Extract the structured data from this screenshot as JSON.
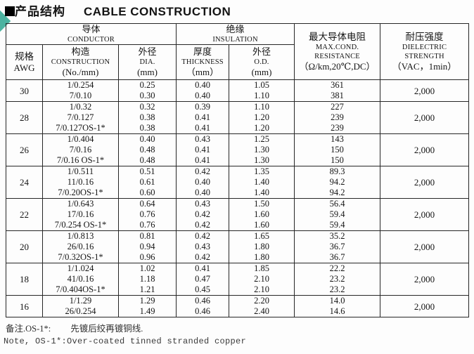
{
  "title": {
    "bullet": "■",
    "zh": "产品结构",
    "en": "CABLE CONSTRUCTION"
  },
  "colors": {
    "accent_teal": "#4cb3a0",
    "border": "#262626",
    "text": "#141414",
    "background": "#ffffff"
  },
  "table": {
    "header": {
      "conductor_group": {
        "zh": "导体",
        "en": "CONDUCTOR"
      },
      "insulation_group": {
        "zh": "绝缘",
        "en": "INSULATION"
      },
      "awg": {
        "zh": "规格",
        "en": "AWG"
      },
      "construction": {
        "zh": "构造",
        "en": "CONSTRUCTION",
        "unit": "(No./mm)"
      },
      "dia": {
        "zh": "外径",
        "en": "DIA.",
        "unit": "(mm)"
      },
      "thickness": {
        "zh": "厚度",
        "en": "THICKNESS",
        "unit": "（mm）"
      },
      "od": {
        "zh": "外径",
        "en": "O.D.",
        "unit": "(mm)"
      },
      "resistance": {
        "zh": "最大导体电阻",
        "en1": "MAX.COND.",
        "en2": "RESISTANCE",
        "unit": "（Ω/km,20℃,DC）"
      },
      "dielectric": {
        "zh": "耐压强度",
        "en1": "DIELECTRIC",
        "en2": "STRENGTH",
        "unit": "（VAC，1min）"
      }
    },
    "groups": [
      {
        "awg": "30",
        "dielectric": "2,000",
        "rows": [
          {
            "construction": "1/0.254",
            "dia": "0.25",
            "thickness": "0.40",
            "od": "1.05",
            "resistance": "361"
          },
          {
            "construction": "7/0.10",
            "dia": "0.30",
            "thickness": "0.40",
            "od": "1.10",
            "resistance": "381"
          }
        ]
      },
      {
        "awg": "28",
        "dielectric": "2,000",
        "rows": [
          {
            "construction": "1/0.32",
            "dia": "0.32",
            "thickness": "0.39",
            "od": "1.10",
            "resistance": "227"
          },
          {
            "construction": "7/0.127",
            "dia": "0.38",
            "thickness": "0.41",
            "od": "1.20",
            "resistance": "239"
          },
          {
            "construction": "7/0.127OS-1*",
            "dia": "0.38",
            "thickness": "0.41",
            "od": "1.20",
            "resistance": "239"
          }
        ]
      },
      {
        "awg": "26",
        "dielectric": "2,000",
        "rows": [
          {
            "construction": "1/0.404",
            "dia": "0.40",
            "thickness": "0.43",
            "od": "1.25",
            "resistance": "143"
          },
          {
            "construction": "7/0.16",
            "dia": "0.48",
            "thickness": "0.41",
            "od": "1.30",
            "resistance": "150"
          },
          {
            "construction": "7/0.16 OS-1*",
            "dia": "0.48",
            "thickness": "0.41",
            "od": "1.30",
            "resistance": "150"
          }
        ]
      },
      {
        "awg": "24",
        "dielectric": "2,000",
        "rows": [
          {
            "construction": "1/0.511",
            "dia": "0.51",
            "thickness": "0.42",
            "od": "1.35",
            "resistance": "89.3"
          },
          {
            "construction": "11/0.16",
            "dia": "0.61",
            "thickness": "0.40",
            "od": "1.40",
            "resistance": "94.2"
          },
          {
            "construction": "7/0.20OS-1*",
            "dia": "0.60",
            "thickness": "0.40",
            "od": "1.40",
            "resistance": "94.2"
          }
        ]
      },
      {
        "awg": "22",
        "dielectric": "2,000",
        "rows": [
          {
            "construction": "1/0.643",
            "dia": "0.64",
            "thickness": "0.43",
            "od": "1.50",
            "resistance": "56.4"
          },
          {
            "construction": "17/0.16",
            "dia": "0.76",
            "thickness": "0.42",
            "od": "1.60",
            "resistance": "59.4"
          },
          {
            "construction": "7/0.254 OS-1*",
            "dia": "0.76",
            "thickness": "0.42",
            "od": "1.60",
            "resistance": "59.4"
          }
        ]
      },
      {
        "awg": "20",
        "dielectric": "2,000",
        "rows": [
          {
            "construction": "1/0.813",
            "dia": "0.81",
            "thickness": "0.42",
            "od": "1.65",
            "resistance": "35.2"
          },
          {
            "construction": "26/0.16",
            "dia": "0.94",
            "thickness": "0.43",
            "od": "1.80",
            "resistance": "36.7"
          },
          {
            "construction": "7/0.32OS-1*",
            "dia": "0.96",
            "thickness": "0.42",
            "od": "1.80",
            "resistance": "36.7"
          }
        ]
      },
      {
        "awg": "18",
        "dielectric": "2,000",
        "rows": [
          {
            "construction": "1/1.024",
            "dia": "1.02",
            "thickness": "0.41",
            "od": "1.85",
            "resistance": "22.2"
          },
          {
            "construction": "41/0.16",
            "dia": "1.18",
            "thickness": "0.47",
            "od": "2.10",
            "resistance": "23.2"
          },
          {
            "construction": "7/0.404OS-1*",
            "dia": "1.21",
            "thickness": "0.45",
            "od": "2.10",
            "resistance": "23.2"
          }
        ]
      },
      {
        "awg": "16",
        "dielectric": "2,000",
        "rows": [
          {
            "construction": "1/1.29",
            "dia": "1.29",
            "thickness": "0.46",
            "od": "2.20",
            "resistance": "14.0"
          },
          {
            "construction": "26/0.254",
            "dia": "1.49",
            "thickness": "0.46",
            "od": "2.40",
            "resistance": "14.6"
          }
        ]
      }
    ]
  },
  "notes": {
    "zh_label": "备注.OS-1*:",
    "zh_text": "先镀后绞再镀铜线.",
    "en": "Note, OS-1*:Over-coated tinned stranded copper"
  }
}
